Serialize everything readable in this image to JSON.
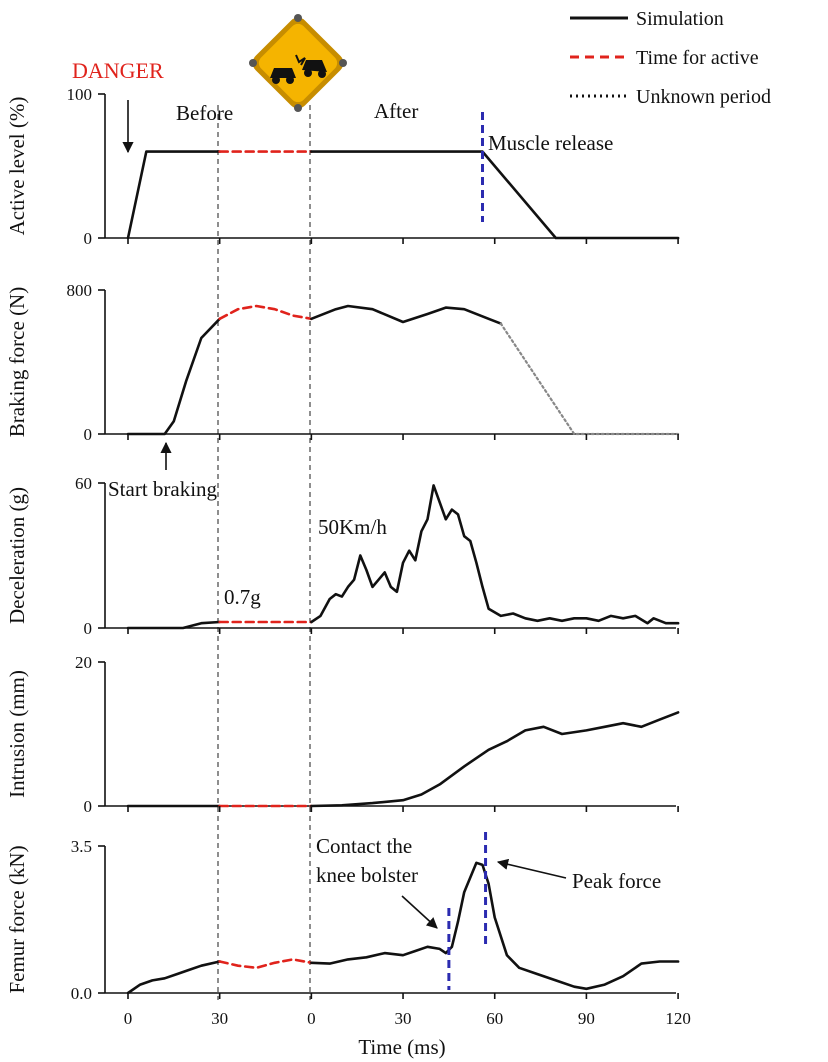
{
  "colors": {
    "simulation": "#111111",
    "active": "#e0231c",
    "unknown": "#888888",
    "release_marker": "#2b2bb0",
    "danger": "#e0231c",
    "sign_yellow": "#f5b400"
  },
  "legend": [
    {
      "label": "Simulation",
      "style": "solid"
    },
    {
      "label": "Time for active",
      "style": "dashed-red"
    },
    {
      "label": "Unknown period",
      "style": "dotted"
    }
  ],
  "annotations": {
    "danger": "DANGER",
    "before": "Before",
    "after": "After",
    "muscle_release": "Muscle release",
    "start_braking": "Start braking",
    "speed": "50Km/h",
    "decel_value": "0.7g",
    "contact": [
      "Contact the",
      "knee bolster"
    ],
    "peak_force": "Peak force"
  },
  "sign_icon": "car-crash-warning-icon",
  "x_axis": {
    "label": "Time (ms)",
    "ticks": [
      "0",
      "30",
      "0",
      "30",
      "60",
      "90",
      "120"
    ]
  },
  "chart_data": {
    "type": "line",
    "stacked_panels": true,
    "x_segments": [
      {
        "phase": "Before",
        "range_ms": [
          0,
          30
        ]
      },
      {
        "phase": "unknown gap",
        "range_ms": null
      },
      {
        "phase": "After",
        "range_ms": [
          0,
          120
        ]
      }
    ],
    "panels": [
      {
        "ylabel": "Active level (%)",
        "ylim": [
          0,
          100
        ],
        "yticks": [
          "0",
          "100"
        ],
        "series": [
          {
            "style": "solid",
            "points": [
              [
                0,
                0
              ],
              [
                6,
                60
              ],
              [
                30,
                60
              ]
            ]
          },
          {
            "style": "dashed-red",
            "points": [
              [
                30,
                60
              ],
              [
                60,
                60
              ]
            ]
          },
          {
            "style": "solid",
            "points": [
              [
                60,
                60
              ],
              [
                116,
                60
              ],
              [
                140,
                0
              ],
              [
                180,
                0
              ]
            ]
          }
        ],
        "markers": [
          {
            "x": 116,
            "label": "Muscle release"
          }
        ]
      },
      {
        "ylabel": "Braking force (N)",
        "ylim": [
          0,
          900
        ],
        "yticks": [
          "0",
          "800"
        ],
        "series": [
          {
            "style": "solid",
            "points": [
              [
                0,
                0
              ],
              [
                12,
                0
              ],
              [
                15,
                80
              ],
              [
                19,
                330
              ],
              [
                24,
                600
              ],
              [
                30,
                720
              ]
            ]
          },
          {
            "style": "dashed-red",
            "points": [
              [
                30,
                720
              ],
              [
                36,
                780
              ],
              [
                42,
                800
              ],
              [
                48,
                780
              ],
              [
                54,
                740
              ],
              [
                60,
                720
              ]
            ]
          },
          {
            "style": "solid",
            "points": [
              [
                60,
                720
              ],
              [
                68,
                780
              ],
              [
                72,
                800
              ],
              [
                80,
                780
              ],
              [
                90,
                700
              ],
              [
                98,
                750
              ],
              [
                104,
                790
              ],
              [
                110,
                780
              ],
              [
                118,
                720
              ],
              [
                122,
                690
              ]
            ]
          },
          {
            "style": "dotted",
            "points": [
              [
                122,
                690
              ],
              [
                146,
                0
              ],
              [
                180,
                0
              ]
            ]
          }
        ],
        "markers": [
          {
            "x": 12,
            "label": "Start braking"
          }
        ]
      },
      {
        "ylabel": "Deceleration (g)",
        "ylim": [
          0,
          60
        ],
        "yticks": [
          "0",
          "60"
        ],
        "series": [
          {
            "style": "solid",
            "points": [
              [
                0,
                0
              ],
              [
                18,
                0
              ],
              [
                24,
                2
              ],
              [
                30,
                2.5
              ]
            ]
          },
          {
            "style": "dashed-red",
            "points": [
              [
                30,
                2.5
              ],
              [
                60,
                2.5
              ]
            ]
          },
          {
            "style": "solid",
            "points": [
              [
                60,
                2.5
              ],
              [
                63,
                5
              ],
              [
                66,
                12
              ],
              [
                68,
                14
              ],
              [
                70,
                13
              ],
              [
                72,
                17
              ],
              [
                74,
                20
              ],
              [
                76,
                30
              ],
              [
                78,
                24
              ],
              [
                80,
                17
              ],
              [
                82,
                20
              ],
              [
                84,
                23
              ],
              [
                86,
                17
              ],
              [
                88,
                15
              ],
              [
                90,
                27
              ],
              [
                92,
                32
              ],
              [
                94,
                28
              ],
              [
                96,
                40
              ],
              [
                98,
                45
              ],
              [
                100,
                59
              ],
              [
                102,
                52
              ],
              [
                104,
                45
              ],
              [
                106,
                49
              ],
              [
                108,
                47
              ],
              [
                110,
                38
              ],
              [
                112,
                36
              ],
              [
                114,
                27
              ],
              [
                116,
                17
              ],
              [
                118,
                8
              ],
              [
                122,
                5
              ],
              [
                126,
                6
              ],
              [
                130,
                4
              ],
              [
                134,
                3
              ],
              [
                138,
                4
              ],
              [
                142,
                3
              ],
              [
                146,
                4
              ],
              [
                150,
                4
              ],
              [
                154,
                3
              ],
              [
                158,
                5
              ],
              [
                162,
                4
              ],
              [
                166,
                5
              ],
              [
                170,
                2
              ],
              [
                172,
                4
              ],
              [
                176,
                2
              ],
              [
                180,
                2
              ]
            ]
          }
        ],
        "labels": [
          {
            "text": "0.7g"
          },
          {
            "text": "50Km/h"
          }
        ]
      },
      {
        "ylabel": "Intrusion (mm)",
        "ylim": [
          0,
          20
        ],
        "yticks": [
          "0",
          "20"
        ],
        "series": [
          {
            "style": "solid",
            "points": [
              [
                0,
                0
              ],
              [
                30,
                0
              ]
            ]
          },
          {
            "style": "dashed-red",
            "points": [
              [
                30,
                0
              ],
              [
                60,
                0
              ]
            ]
          },
          {
            "style": "solid",
            "points": [
              [
                60,
                0
              ],
              [
                70,
                0.1
              ],
              [
                80,
                0.4
              ],
              [
                90,
                0.8
              ],
              [
                96,
                1.6
              ],
              [
                102,
                3
              ],
              [
                110,
                5.5
              ],
              [
                118,
                7.8
              ],
              [
                124,
                9
              ],
              [
                130,
                10.5
              ],
              [
                136,
                11
              ],
              [
                142,
                10
              ],
              [
                150,
                10.5
              ],
              [
                156,
                11
              ],
              [
                162,
                11.5
              ],
              [
                168,
                11
              ],
              [
                174,
                12
              ],
              [
                180,
                13
              ]
            ]
          }
        ]
      },
      {
        "ylabel": "Femur force (kN)",
        "ylim": [
          0,
          3.5
        ],
        "yticks": [
          "0.0",
          "3.5"
        ],
        "series": [
          {
            "style": "solid",
            "points": [
              [
                0,
                0
              ],
              [
                4,
                0.2
              ],
              [
                8,
                0.3
              ],
              [
                12,
                0.35
              ],
              [
                16,
                0.45
              ],
              [
                20,
                0.55
              ],
              [
                24,
                0.65
              ],
              [
                30,
                0.75
              ]
            ]
          },
          {
            "style": "dashed-red",
            "points": [
              [
                30,
                0.75
              ],
              [
                36,
                0.65
              ],
              [
                42,
                0.6
              ],
              [
                48,
                0.72
              ],
              [
                54,
                0.8
              ],
              [
                60,
                0.72
              ]
            ]
          },
          {
            "style": "solid",
            "points": [
              [
                60,
                0.72
              ],
              [
                66,
                0.7
              ],
              [
                72,
                0.8
              ],
              [
                78,
                0.85
              ],
              [
                84,
                0.95
              ],
              [
                90,
                0.9
              ],
              [
                94,
                1.0
              ],
              [
                98,
                1.1
              ],
              [
                102,
                1.05
              ],
              [
                104,
                0.95
              ],
              [
                106,
                1.1
              ],
              [
                108,
                1.7
              ],
              [
                110,
                2.4
              ],
              [
                114,
                3.1
              ],
              [
                116,
                3.05
              ],
              [
                118,
                2.6
              ],
              [
                120,
                1.8
              ],
              [
                124,
                0.9
              ],
              [
                128,
                0.6
              ],
              [
                134,
                0.45
              ],
              [
                140,
                0.3
              ],
              [
                146,
                0.15
              ],
              [
                150,
                0.1
              ],
              [
                156,
                0.2
              ],
              [
                162,
                0.4
              ],
              [
                168,
                0.7
              ],
              [
                174,
                0.75
              ],
              [
                180,
                0.75
              ]
            ]
          }
        ],
        "markers": [
          {
            "x": 105,
            "label": "Contact the knee bolster"
          },
          {
            "x": 117,
            "label": "Peak force"
          }
        ]
      }
    ]
  }
}
